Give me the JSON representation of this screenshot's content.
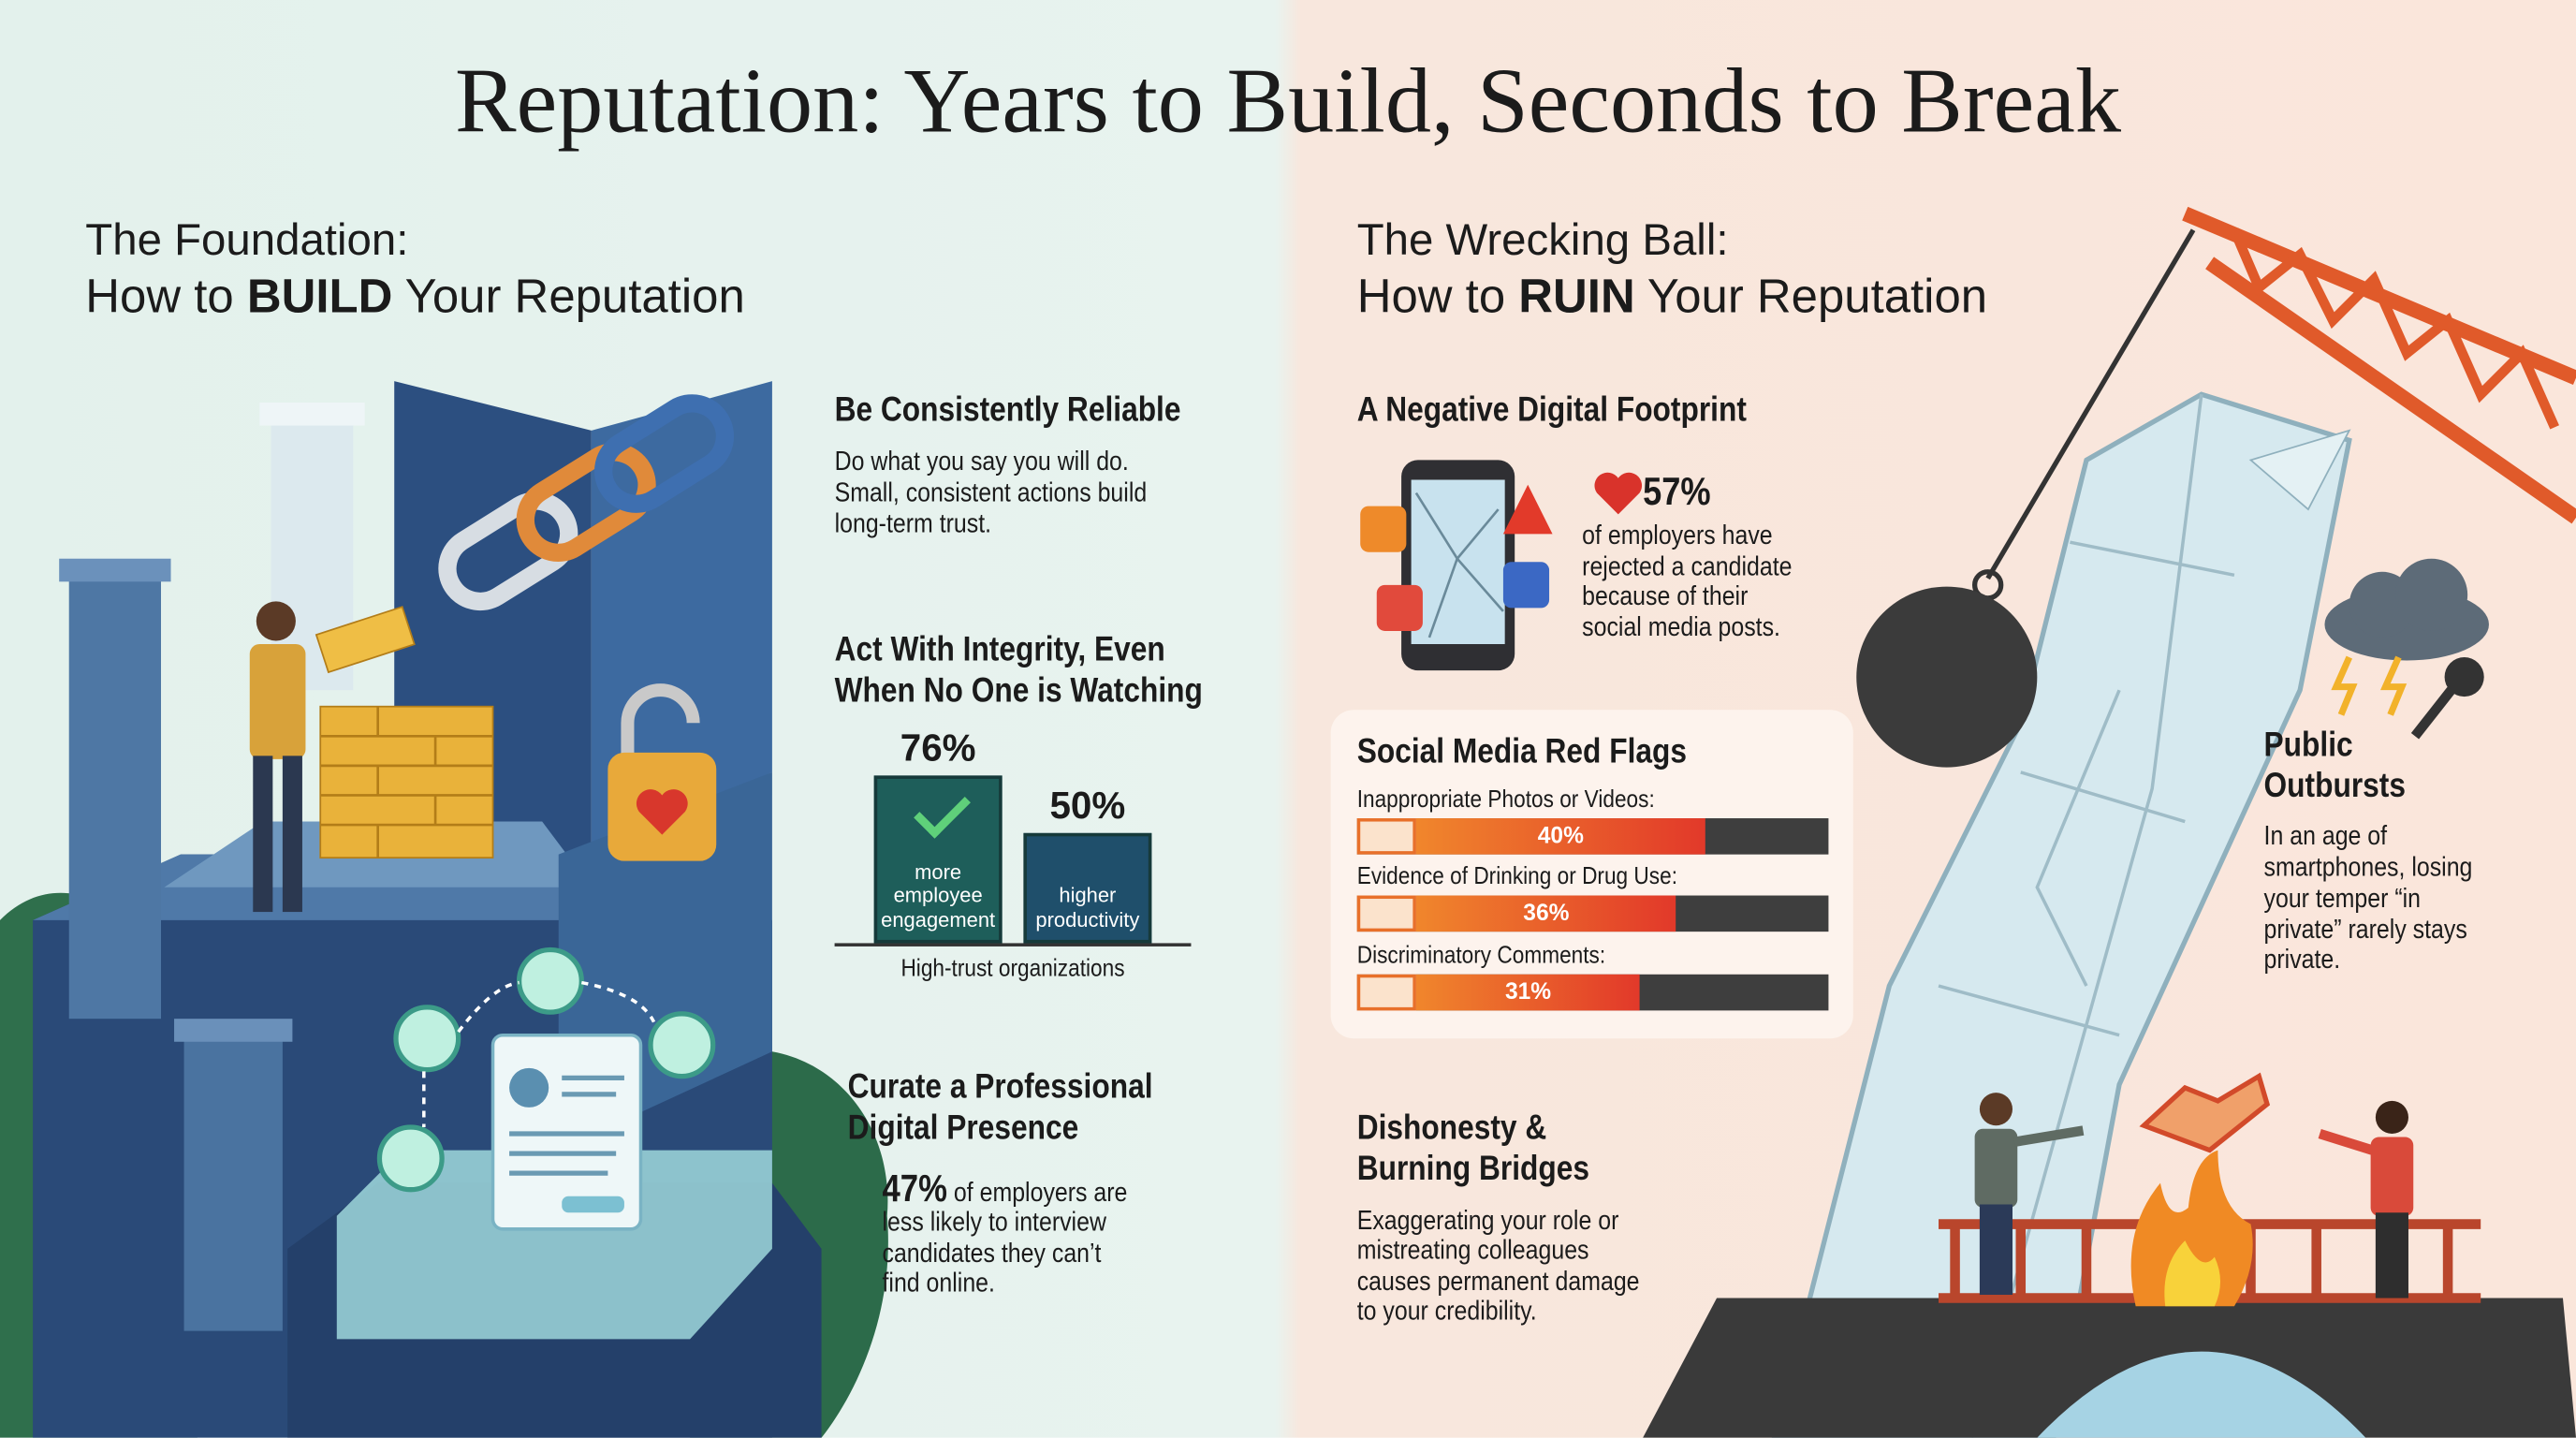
{
  "title": "Reputation: Years to Build, Seconds to Break",
  "build": {
    "kicker": "The Foundation:",
    "heading": [
      "How to ",
      "BUILD",
      " Your Reputation"
    ],
    "reliable": {
      "title": "Be Consistently Reliable",
      "lines": [
        "Do what you say you will do.",
        "Small, consistent actions build",
        "long-term trust."
      ]
    },
    "integrity": {
      "title": [
        "Act With Integrity, Even",
        "When No One is Watching"
      ],
      "bars": [
        {
          "value": 76,
          "label": "76%",
          "caption": [
            "more",
            "employee",
            "engagement"
          ]
        },
        {
          "value": 50,
          "label": "50%",
          "caption": [
            "higher",
            "productivity"
          ]
        }
      ],
      "axis_label": "High-trust organizations"
    },
    "presence": {
      "title": [
        "Curate a Professional",
        "Digital Presence"
      ],
      "stat": "47%",
      "lines": [
        "of employers are",
        "less likely to interview",
        "candidates they can’t",
        "find online."
      ]
    }
  },
  "ruin": {
    "kicker": "The Wrecking Ball:",
    "heading": [
      "How to ",
      "RUIN",
      " Your Reputation"
    ],
    "footprint": {
      "title": "A Negative Digital Footprint",
      "stat": "57%",
      "lines": [
        "of employers have",
        "rejected a candidate",
        "because of their",
        "social media posts."
      ]
    },
    "red_flags": {
      "title": "Social Media Red Flags",
      "items": [
        {
          "label": "Inappropriate Photos or Videos:",
          "value": 40,
          "value_label": "40%"
        },
        {
          "label": "Evidence of Drinking or Drug Use:",
          "value": 36,
          "value_label": "36%"
        },
        {
          "label": "Discriminatory Comments:",
          "value": 31,
          "value_label": "31%"
        }
      ]
    },
    "dishonesty": {
      "title": [
        "Dishonesty &",
        "Burning Bridges"
      ],
      "lines": [
        "Exaggerating your role or",
        "mistreating colleagues",
        "causes permanent damage",
        "to your credibility."
      ]
    },
    "outbursts": {
      "title": [
        "Public",
        "Outbursts"
      ],
      "lines": [
        "In an age of",
        "smartphones, losing",
        "your temper “in",
        "private” rarely stays",
        "private."
      ]
    }
  }
}
